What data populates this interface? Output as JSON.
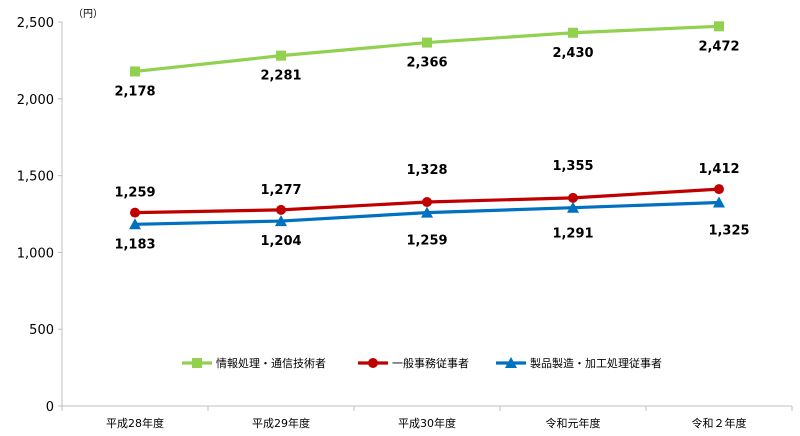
{
  "chart_data": {
    "type": "line",
    "unit_label": "（円）",
    "categories": [
      "平成28年度",
      "平成29年度",
      "平成30年度",
      "令和元年度",
      "令和２年度"
    ],
    "ylim": [
      0,
      2500
    ],
    "yticks": [
      "0",
      "500",
      "1,000",
      "1,500",
      "2,000",
      "2,500"
    ],
    "ytick_values": [
      0,
      500,
      1000,
      1500,
      2000,
      2500
    ],
    "grid": false,
    "legend_position": "bottom",
    "series": [
      {
        "name": "情報処理・通信技術者",
        "color": "#92D050",
        "marker": "square",
        "values": [
          2178,
          2281,
          2366,
          2430,
          2472
        ],
        "labels": [
          "2,178",
          "2,281",
          "2,366",
          "2,430",
          "2,472"
        ]
      },
      {
        "name": "一般事務従事者",
        "color": "#C00000",
        "marker": "circle",
        "values": [
          1259,
          1277,
          1328,
          1355,
          1412
        ],
        "labels": [
          "1,259",
          "1,277",
          "1,328",
          "1,355",
          "1,412"
        ]
      },
      {
        "name": "製品製造・加工処理従事者",
        "color": "#0070C0",
        "marker": "triangle",
        "values": [
          1183,
          1204,
          1259,
          1291,
          1325
        ],
        "labels": [
          "1,183",
          "1,204",
          "1,259",
          "1,291",
          "1,325"
        ]
      }
    ]
  }
}
